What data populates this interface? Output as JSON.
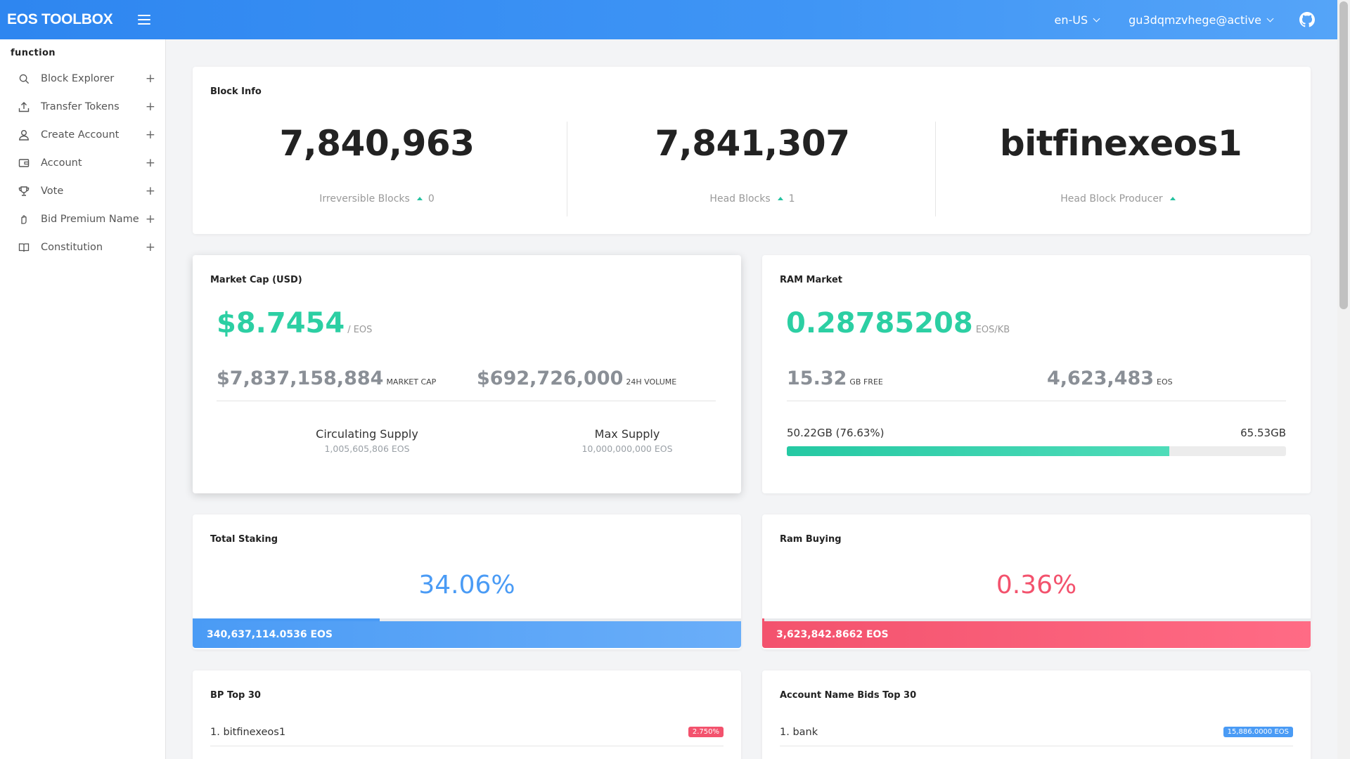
{
  "header": {
    "brand": "EOS TOOLBOX",
    "language": "en-US",
    "account": "gu3dqmzvhege@active",
    "github_icon": "github-icon"
  },
  "sidebar": {
    "section": "function",
    "items": [
      {
        "label": "Block Explorer",
        "icon": "search-icon"
      },
      {
        "label": "Transfer Tokens",
        "icon": "upload-icon"
      },
      {
        "label": "Create Account",
        "icon": "user-icon"
      },
      {
        "label": "Account",
        "icon": "wallet-icon"
      },
      {
        "label": "Vote",
        "icon": "trophy-icon"
      },
      {
        "label": "Bid Premium Name",
        "icon": "hand-icon"
      },
      {
        "label": "Constitution",
        "icon": "book-icon"
      }
    ]
  },
  "block_info": {
    "title": "Block Info",
    "irreversible": {
      "value": "7,840,963",
      "label": "Irreversible Blocks",
      "delta": "0"
    },
    "head": {
      "value": "7,841,307",
      "label": "Head Blocks",
      "delta": "1"
    },
    "producer": {
      "value": "bitfinexeos1",
      "label": "Head Block Producer"
    }
  },
  "market_cap": {
    "title": "Market Cap (USD)",
    "price": "$8.7454",
    "price_unit": "/ EOS",
    "cap_value": "$7,837,158,884",
    "cap_label": "MARKET CAP",
    "volume_value": "$692,726,000",
    "volume_label": "24H VOLUME",
    "circulating_label": "Circulating Supply",
    "circulating_value": "1,005,605,806 EOS",
    "max_label": "Max Supply",
    "max_value": "10,000,000,000 EOS"
  },
  "ram_market": {
    "title": "RAM Market",
    "price": "0.28785208",
    "price_unit": "EOS/KB",
    "free_value": "15.32",
    "free_label": "GB FREE",
    "eos_value": "4,623,483",
    "eos_label": "EOS",
    "used_label": "50.22GB (76.63%)",
    "total_label": "65.53GB",
    "used_percent": 76.63
  },
  "total_staking": {
    "title": "Total Staking",
    "percent": "34.06%",
    "progress": 34.06,
    "amount": "340,637,114.0536 EOS",
    "color": "#4a9bf5"
  },
  "ram_buying": {
    "title": "Ram Buying",
    "percent": "0.36%",
    "progress": 0.36,
    "amount": "3,623,842.8662 EOS",
    "color": "#f3526d"
  },
  "bp_top": {
    "title": "BP Top 30",
    "rows": [
      {
        "name": "1. bitfinexeos1",
        "badge": "2.750%"
      }
    ]
  },
  "bids_top": {
    "title": "Account Name Bids Top 30",
    "rows": [
      {
        "name": "1. bank",
        "badge": "15,886.0000 EOS"
      }
    ]
  }
}
